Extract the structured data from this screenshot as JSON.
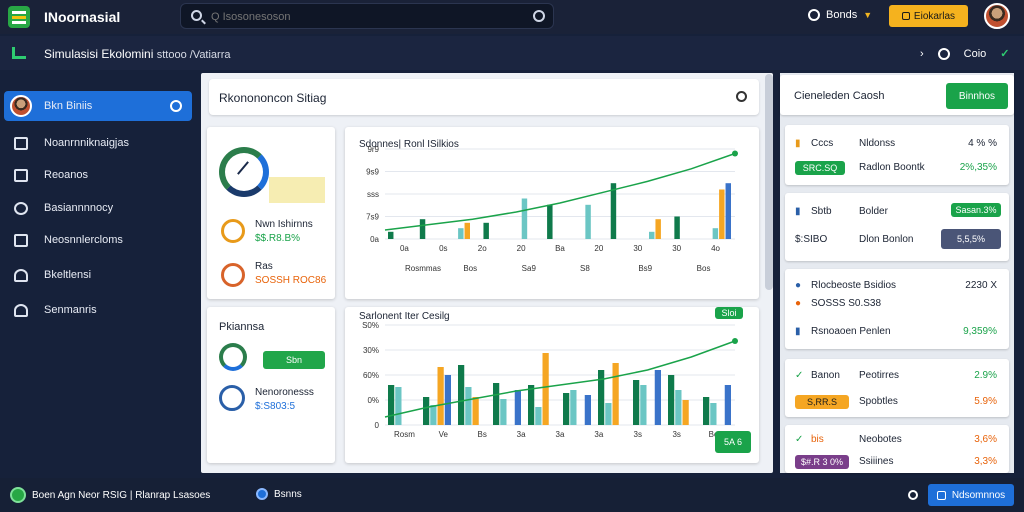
{
  "app": {
    "title": "INoornasial"
  },
  "search": {
    "placeholder": "Q Isosonesoson"
  },
  "header": {
    "language": "Bonds",
    "action_label": "Eiokarlas"
  },
  "subheader": {
    "title": "Simulasisi Ekolomini",
    "subtitle": "sttooo /Vatiarra",
    "right_label": "Coio"
  },
  "sidebar": {
    "items": [
      {
        "label": "Bkn Biniis",
        "icon": "avatar-icon",
        "active": true
      },
      {
        "label": "Noanrnniknaigjas",
        "icon": "grid-icon"
      },
      {
        "label": "Reoanos",
        "icon": "box-icon"
      },
      {
        "label": "Basiannnnocy",
        "icon": "dollar-circle-icon"
      },
      {
        "label": "Neosnnlercloms",
        "icon": "table-icon"
      },
      {
        "label": "Bkeltlensi",
        "icon": "user-icon"
      },
      {
        "label": "Senmanris",
        "icon": "group-icon"
      }
    ]
  },
  "main": {
    "header": "Rkonononcon Sitiag",
    "card1": {
      "items": [
        {
          "label": "Nwn Ishirnns",
          "value": "$$.R8.B%"
        },
        {
          "label": "Ras",
          "value": "SOSSH ROC86"
        }
      ]
    },
    "card2": {
      "title": "Pkiannsa",
      "button": "Sbn",
      "items": [
        {
          "label": "Nenoronesss",
          "value": "$:S803:5"
        }
      ]
    },
    "chart1": {
      "title": "Sdonnes| Ronl ISilkios",
      "badge": ""
    },
    "chart2": {
      "title": "Sarlonent Iter Cesilg",
      "badge": "Sloi",
      "button": "5A 6"
    }
  },
  "chart_data": [
    {
      "type": "bar",
      "title": "Sdonnes| Ronl ISilkios",
      "y_ticks": [
        "9r9",
        "9s9",
        "sss",
        "7s9",
        "0a"
      ],
      "x_ticks": [
        "0a",
        "0s",
        "2o",
        "20",
        "Ba",
        "20",
        "30",
        "30",
        "4o"
      ],
      "x_ticks_lower": [
        "Rosmmas",
        "Bos",
        "Sa9",
        "S8",
        "Bs9",
        "Bos"
      ],
      "ylim": [
        0,
        100
      ],
      "series": [
        {
          "color": "#0f7a4b",
          "values": [
            8,
            22,
            0,
            18,
            0,
            38,
            0,
            62,
            0,
            25,
            0
          ]
        },
        {
          "color": "#6bc6c4",
          "values": [
            0,
            0,
            12,
            0,
            45,
            0,
            38,
            0,
            8,
            0,
            12
          ]
        },
        {
          "color": "#f5a623",
          "values": [
            0,
            0,
            18,
            0,
            0,
            0,
            0,
            0,
            22,
            0,
            55
          ]
        },
        {
          "color": "#3a73c9",
          "values": [
            0,
            0,
            0,
            0,
            0,
            0,
            0,
            0,
            0,
            0,
            62
          ]
        }
      ],
      "trend": [
        10,
        16,
        22,
        30,
        40,
        52,
        64,
        78,
        95
      ]
    },
    {
      "type": "bar",
      "title": "Sarlonent Iter Cesilg",
      "y_ticks": [
        "S0%",
        "30%",
        "60%",
        "0%",
        "0"
      ],
      "x_ticks": [
        "Rosm",
        "Ve",
        "Bs",
        "3a",
        "3a",
        "3a",
        "3s",
        "3s",
        "Bos"
      ],
      "ylim": [
        0,
        100
      ],
      "series": [
        {
          "color": "#0f7a4b",
          "values": [
            40,
            28,
            60,
            42,
            40,
            32,
            55,
            45,
            50,
            28
          ]
        },
        {
          "color": "#6bc6c4",
          "values": [
            38,
            20,
            38,
            26,
            18,
            35,
            22,
            40,
            35,
            22
          ]
        },
        {
          "color": "#f5a623",
          "values": [
            0,
            58,
            28,
            0,
            72,
            0,
            62,
            0,
            25,
            0
          ]
        },
        {
          "color": "#3a73c9",
          "values": [
            0,
            50,
            0,
            35,
            0,
            30,
            0,
            55,
            0,
            40
          ]
        }
      ],
      "trend": [
        8,
        18,
        26,
        34,
        40,
        46,
        55,
        68,
        84
      ]
    }
  ],
  "right_panel": {
    "header": {
      "title": "Cieneleden Caosh",
      "button": "Binnhos"
    },
    "card1": {
      "rows": [
        {
          "a": "Cccs",
          "b": "Nldonss",
          "c": "4 % %"
        },
        {
          "a": "SRC.SQ",
          "b": "Radlon Boontk",
          "c": "2%,35%"
        }
      ]
    },
    "card2": {
      "rows": [
        {
          "a": "Sbtb",
          "b": "Bolder",
          "c": "Sasan.3%"
        },
        {
          "a": "$:SIBO",
          "b": "Dlon Bonlon",
          "c": "5,5,5%"
        }
      ]
    },
    "card3": {
      "rows": [
        {
          "a": "Rlocbeoste Bsidios",
          "c": "2230 X"
        },
        {
          "a": "SOSSS S0.S38"
        },
        {
          "a": "Rsnoaoen Penlen",
          "c": "9,359%"
        }
      ]
    },
    "card4": {
      "rows": [
        {
          "a": "Banon",
          "b": "Peotirres",
          "c": "2.9%"
        },
        {
          "a": "S,RR.S",
          "b": "Spobtles",
          "c": "5.9%"
        }
      ]
    },
    "card5": {
      "rows": [
        {
          "a": "bis",
          "b": "Neobotes",
          "c": "3,6%"
        },
        {
          "a": "$#.R 3 0%",
          "b": "Ssiiines",
          "c": "3,3%"
        }
      ]
    }
  },
  "footer": {
    "left": "Boen Agn Neor RSIG | Rlanrap Lsasoes",
    "middle": "Bsnns",
    "button": "Ndsomnnos"
  }
}
